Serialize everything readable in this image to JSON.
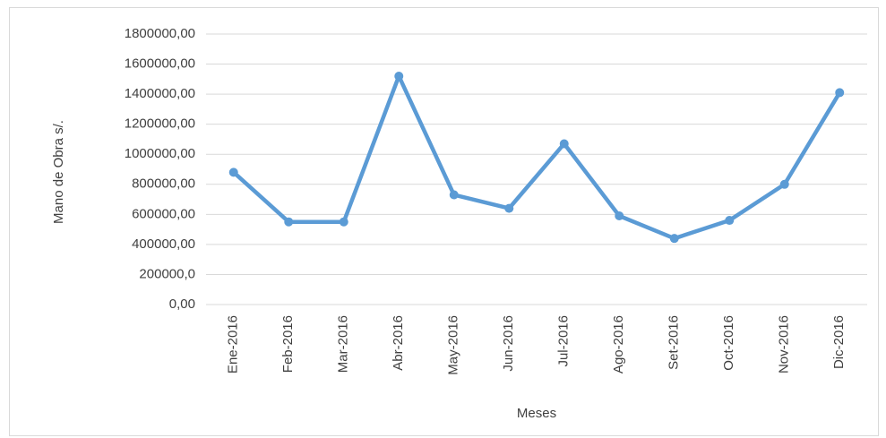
{
  "chart_data": {
    "type": "line",
    "y_label": "Mano de Obra s/.",
    "x_label": "Meses",
    "categories": [
      "Ene-2016",
      "Feb-2016",
      "Mar-2016",
      "Abr-2016",
      "May-2016",
      "Jun-2016",
      "Jul-2016",
      "Ago-2016",
      "Set-2016",
      "Oct-2016",
      "Nov-2016",
      "Dic-2016"
    ],
    "values": [
      880000,
      550000,
      550000,
      1520000,
      730000,
      640000,
      1070000,
      590000,
      440000,
      560000,
      800000,
      1410000
    ],
    "color": "#5b9bd5",
    "ylim": [
      0,
      1800000
    ],
    "yticks": [
      {
        "value": 0,
        "label": "0,00"
      },
      {
        "value": 200000,
        "label": "200000,0"
      },
      {
        "value": 400000,
        "label": "400000,00"
      },
      {
        "value": 600000,
        "label": "600000,00"
      },
      {
        "value": 800000,
        "label": "800000,00"
      },
      {
        "value": 1000000,
        "label": "1000000,00"
      },
      {
        "value": 1200000,
        "label": "1200000,00"
      },
      {
        "value": 1400000,
        "label": "1400000,00"
      },
      {
        "value": 1600000,
        "label": "1600000,00"
      },
      {
        "value": 1800000,
        "label": "1800000,00"
      }
    ],
    "grid": true
  }
}
